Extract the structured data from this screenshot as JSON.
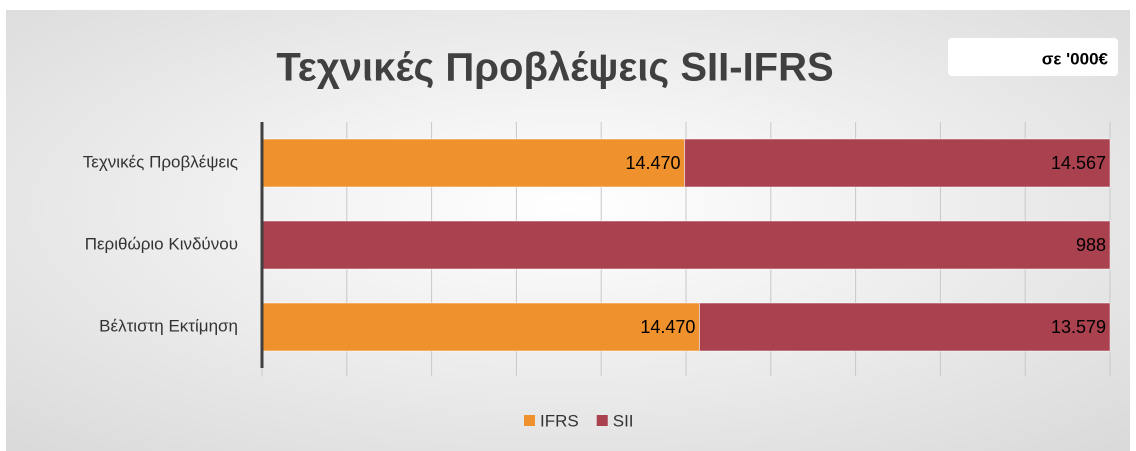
{
  "chart_data": {
    "type": "bar",
    "orientation": "horizontal",
    "stacked": "percent",
    "title": "Τεχνικές Προβλέψεις SII-IFRS",
    "subtitle": "σε '000€",
    "categories": [
      "Τεχνικές Προβλέψεις",
      "Περιθώριο Κινδύνου",
      "Βέλτιστη Εκτίμηση"
    ],
    "series": [
      {
        "name": "IFRS",
        "color": "#ef922e",
        "values": [
          14470,
          null,
          14470
        ],
        "value_labels": [
          "14.470",
          null,
          "14.470"
        ]
      },
      {
        "name": "SII",
        "color": "#a9414f",
        "values": [
          14567,
          988,
          13579
        ],
        "value_labels": [
          "14.567",
          "988",
          "13.579"
        ]
      }
    ],
    "xlim": [
      0,
      100
    ],
    "xticks": [
      0,
      10,
      20,
      30,
      40,
      50,
      60,
      70,
      80,
      90,
      100
    ],
    "grid": true,
    "legend": "bottom"
  }
}
